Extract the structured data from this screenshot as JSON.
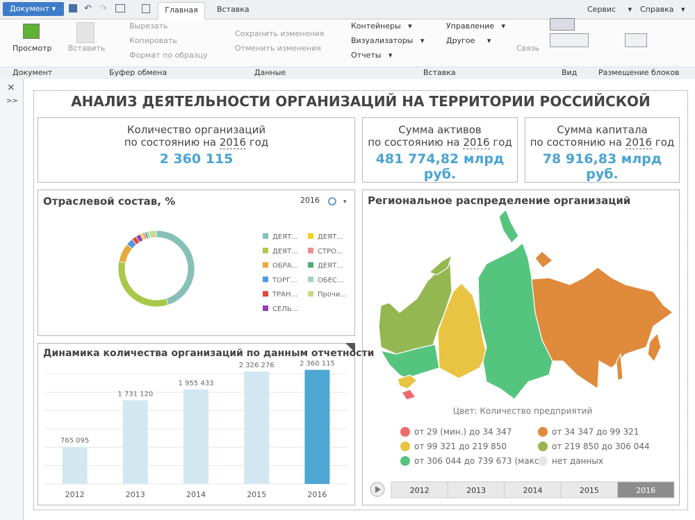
{
  "ribbon": {
    "document_menu": "Документ",
    "tabs": [
      "Главная",
      "Вставка"
    ],
    "menus": [
      "Сервис",
      "Справка"
    ],
    "buttons": {
      "preview": "Просмотр",
      "paste": "Вставить",
      "cut": "Вырезать",
      "copy": "Копировать",
      "format": "Формат по образцу",
      "save": "Сохранить изменения",
      "cancel": "Отменить изменения",
      "containers": "Контейнеры",
      "visualizers": "Визуализаторы",
      "reports": "Отчеты",
      "control": "Управление",
      "other": "Другое",
      "link": "Связь"
    },
    "groups": [
      "Документ",
      "Буфер обмена",
      "Данные",
      "Вставка",
      "Вид",
      "Размещение блоков"
    ]
  },
  "dashboard": {
    "title": "АНАЛИЗ ДЕЯТЕЛЬНОСТИ ОРГАНИЗАЦИЙ НА ТЕРРИТОРИИ РОССИЙСКОЙ",
    "cards": [
      {
        "label": "Количество организаций",
        "sub_prefix": "по состоянию на",
        "year": "2016",
        "sub_suffix": "год",
        "value": "2 360 115"
      },
      {
        "label": "Сумма активов",
        "sub_prefix": "по состоянию на",
        "year": "2016",
        "sub_suffix": "год",
        "value": "481 774,82 млрд руб."
      },
      {
        "label": "Сумма капитала",
        "sub_prefix": "по состоянию на",
        "year": "2016",
        "sub_suffix": "год",
        "value": "78 916,83 млрд руб."
      }
    ]
  },
  "chart_data": [
    {
      "type": "pie",
      "title": "Отраслевой состав, %",
      "year_selector": "2016",
      "donut": true,
      "categories": [
        "ДЕЯТ...",
        "ДЕЯТ...",
        "ОБРА...",
        "ТОРГ...",
        "ТРАН...",
        "СЕЛЬ...",
        "ДЕЯТ...",
        "СТРО...",
        "ДЕЯТ...",
        "ОБЕС...",
        "Прочи..."
      ],
      "values": [
        45,
        33,
        8,
        3,
        2,
        2,
        1,
        1,
        1,
        1,
        3
      ],
      "colors": [
        "#86c0b6",
        "#a9c84a",
        "#e8a93a",
        "#5394e0",
        "#e8463c",
        "#8e44ad",
        "#f2d21b",
        "#f08c8c",
        "#4caf72",
        "#9fd1c6",
        "#c6dc8a"
      ]
    },
    {
      "type": "bar",
      "title": "Динамика количества организаций по данным отчетности",
      "categories": [
        "2012",
        "2013",
        "2014",
        "2015",
        "2016"
      ],
      "values": [
        765095,
        1731120,
        1955433,
        2326276,
        2360115
      ],
      "value_labels": [
        "765 095",
        "1 731 120",
        "1 955 433",
        "2 326 276",
        "2 360 115"
      ],
      "colors": [
        "#d3e7f1",
        "#d3e7f1",
        "#d3e7f1",
        "#d3e7f1",
        "#4ea6d2"
      ],
      "ylim": [
        0,
        2500000
      ],
      "grid": true
    }
  ],
  "map": {
    "title": "Региональное распределение организаций",
    "color_caption": "Цвет: Количество предприятий",
    "legend": [
      {
        "label": "от 29 (мин.) до 34 347",
        "color": "#ef6b6f"
      },
      {
        "label": "от 34 347 до 99 321",
        "color": "#e08a3c"
      },
      {
        "label": "от 99 321 до 219 850",
        "color": "#e9c443"
      },
      {
        "label": "от 219 850 до 306 044",
        "color": "#94b752"
      },
      {
        "label": "от 306 044 до 739 673 (макс.)",
        "color": "#55c47f"
      },
      {
        "label": "нет данных",
        "color": "#e6e6e6"
      }
    ],
    "timeline": [
      "2012",
      "2013",
      "2014",
      "2015",
      "2016"
    ],
    "selected": "2016"
  }
}
